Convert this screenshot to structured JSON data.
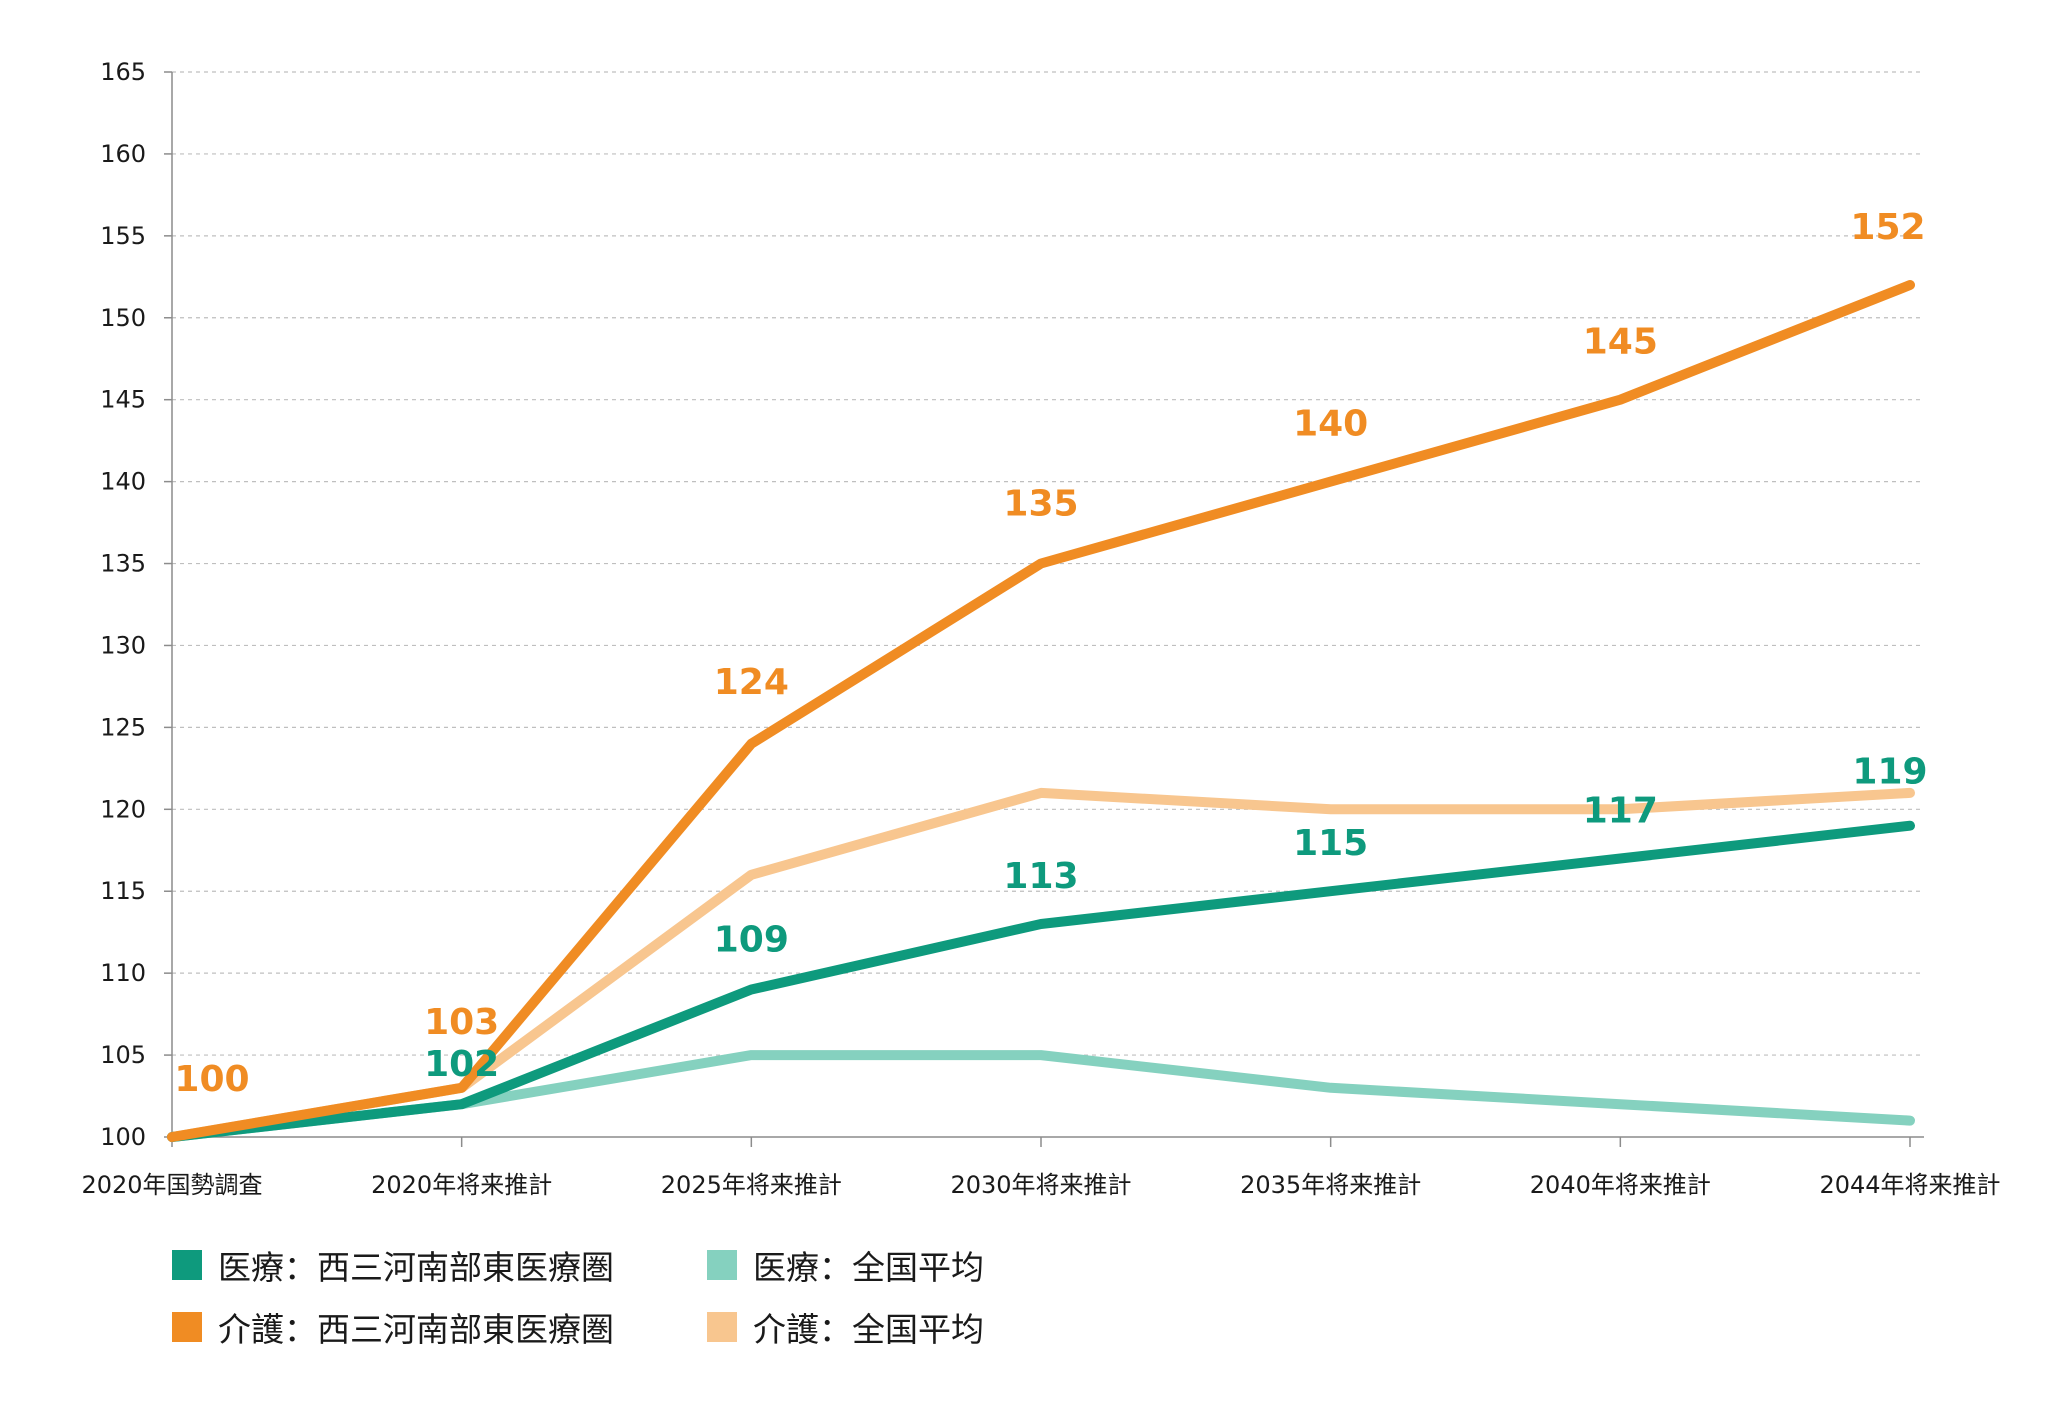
{
  "chart_data": {
    "type": "line",
    "title": "",
    "xlabel": "",
    "ylabel": "",
    "ylim": [
      100,
      165
    ],
    "yticks": [
      100,
      105,
      110,
      115,
      120,
      125,
      130,
      135,
      140,
      145,
      150,
      155,
      160,
      165
    ],
    "grid": true,
    "legend_position": "bottom-left",
    "categories": [
      "2020年国勢調査",
      "2020年将来推計",
      "2025年将来推計",
      "2030年将来推計",
      "2035年将来推計",
      "2040年将来推計",
      "2044年将来推計"
    ],
    "series": [
      {
        "name": "医療：西三河南部東医療圏",
        "color": "#0e9a7d",
        "values": [
          100,
          102,
          109,
          113,
          115,
          117,
          119
        ],
        "labels": [
          "",
          "102",
          "109",
          "113",
          "115",
          "117",
          "119"
        ]
      },
      {
        "name": "医療：全国平均",
        "color": "#85d1bf",
        "values": [
          100,
          102,
          105,
          105,
          103,
          102,
          101
        ],
        "labels": [
          "",
          "",
          "",
          "",
          "",
          "",
          ""
        ]
      },
      {
        "name": "介護：西三河南部東医療圏",
        "color": "#f08c23",
        "values": [
          100,
          103,
          124,
          135,
          140,
          145,
          152
        ],
        "labels": [
          "100",
          "103",
          "124",
          "135",
          "140",
          "145",
          "152"
        ]
      },
      {
        "name": "介護：全国平均",
        "color": "#f8c68f",
        "values": [
          100,
          103,
          116,
          121,
          120,
          120,
          121
        ],
        "labels": [
          "",
          "",
          "",
          "",
          "",
          "",
          ""
        ]
      }
    ],
    "legend_order": [
      0,
      1,
      2,
      3
    ]
  }
}
